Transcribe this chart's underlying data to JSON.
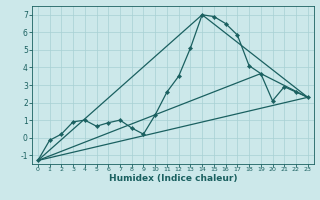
{
  "background_color": "#cce8ea",
  "grid_color": "#a8d0d4",
  "line_color": "#1a6060",
  "xlabel": "Humidex (Indice chaleur)",
  "xlim": [
    -0.5,
    23.5
  ],
  "ylim": [
    -1.5,
    7.5
  ],
  "yticks": [
    -1,
    0,
    1,
    2,
    3,
    4,
    5,
    6,
    7
  ],
  "xticks": [
    0,
    1,
    2,
    3,
    4,
    5,
    6,
    7,
    8,
    9,
    10,
    11,
    12,
    13,
    14,
    15,
    16,
    17,
    18,
    19,
    20,
    21,
    22,
    23
  ],
  "series": [
    {
      "x": [
        0,
        1,
        2,
        3,
        4,
        5,
        6,
        7,
        8,
        9,
        10,
        11,
        12,
        13,
        14,
        15,
        16,
        17,
        18,
        19,
        20,
        21,
        22,
        23
      ],
      "y": [
        -1.3,
        -0.15,
        0.2,
        0.9,
        1.0,
        0.65,
        0.85,
        1.0,
        0.55,
        0.2,
        1.3,
        2.6,
        3.5,
        5.1,
        7.0,
        6.9,
        6.5,
        5.85,
        4.1,
        3.65,
        2.1,
        2.9,
        2.6,
        2.3
      ],
      "marker": "D",
      "markersize": 2.2,
      "linewidth": 0.9,
      "draw_markers": true
    },
    {
      "x": [
        0,
        23
      ],
      "y": [
        -1.3,
        2.3
      ],
      "marker": null,
      "linewidth": 0.9,
      "draw_markers": false
    },
    {
      "x": [
        0,
        14,
        23
      ],
      "y": [
        -1.3,
        7.0,
        2.3
      ],
      "marker": null,
      "linewidth": 0.9,
      "draw_markers": false
    },
    {
      "x": [
        0,
        19,
        23
      ],
      "y": [
        -1.3,
        3.65,
        2.3
      ],
      "marker": null,
      "linewidth": 0.9,
      "draw_markers": false
    }
  ]
}
